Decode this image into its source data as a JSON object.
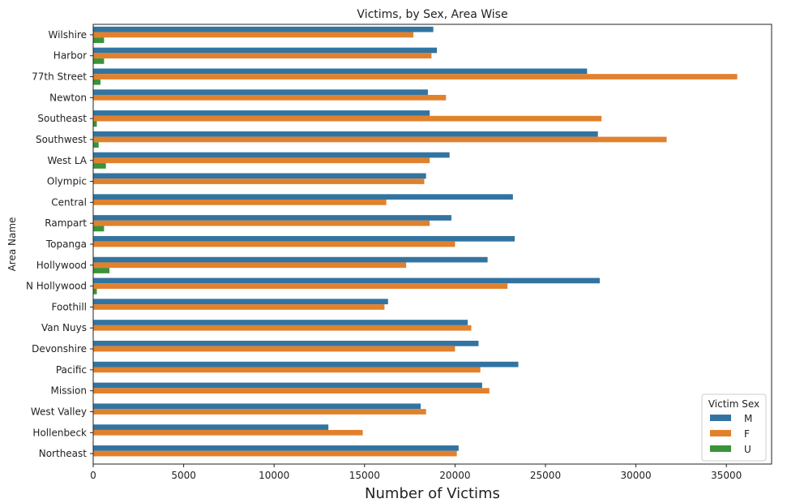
{
  "chart_data": {
    "type": "bar",
    "orientation": "horizontal",
    "title": "Victims, by Sex, Area Wise",
    "xlabel": "Number of Victims",
    "ylabel": "Area Name",
    "xlim": [
      0,
      37500
    ],
    "x_ticks": [
      0,
      5000,
      10000,
      15000,
      20000,
      25000,
      30000,
      35000
    ],
    "grid": false,
    "legend": {
      "title": "Victim Sex",
      "placement": "bottom-right"
    },
    "categories": [
      "Wilshire",
      "Harbor",
      "77th Street",
      "Newton",
      "Southeast",
      "Southwest",
      "West LA",
      "Olympic",
      "Central",
      "Rampart",
      "Topanga",
      "Hollywood",
      "N Hollywood",
      "Foothill",
      "Van Nuys",
      "Devonshire",
      "Pacific",
      "Mission",
      "West Valley",
      "Hollenbeck",
      "Northeast"
    ],
    "series": [
      {
        "name": "M",
        "color": "#3274a1",
        "values": [
          18800,
          19000,
          27300,
          18500,
          18600,
          27900,
          19700,
          18400,
          23200,
          19800,
          23300,
          21800,
          28000,
          16300,
          20700,
          21300,
          23500,
          21500,
          18100,
          13000,
          20200
        ]
      },
      {
        "name": "F",
        "color": "#e1812c",
        "values": [
          17700,
          18700,
          35600,
          19500,
          28100,
          31700,
          18600,
          18300,
          16200,
          18600,
          20000,
          17300,
          22900,
          16100,
          20900,
          20000,
          21400,
          21900,
          18400,
          14900,
          20100
        ]
      },
      {
        "name": "U",
        "color": "#3a923a",
        "values": [
          600,
          600,
          400,
          0,
          200,
          300,
          700,
          0,
          0,
          600,
          0,
          900,
          200,
          0,
          0,
          0,
          0,
          0,
          0,
          0,
          0
        ]
      }
    ]
  }
}
